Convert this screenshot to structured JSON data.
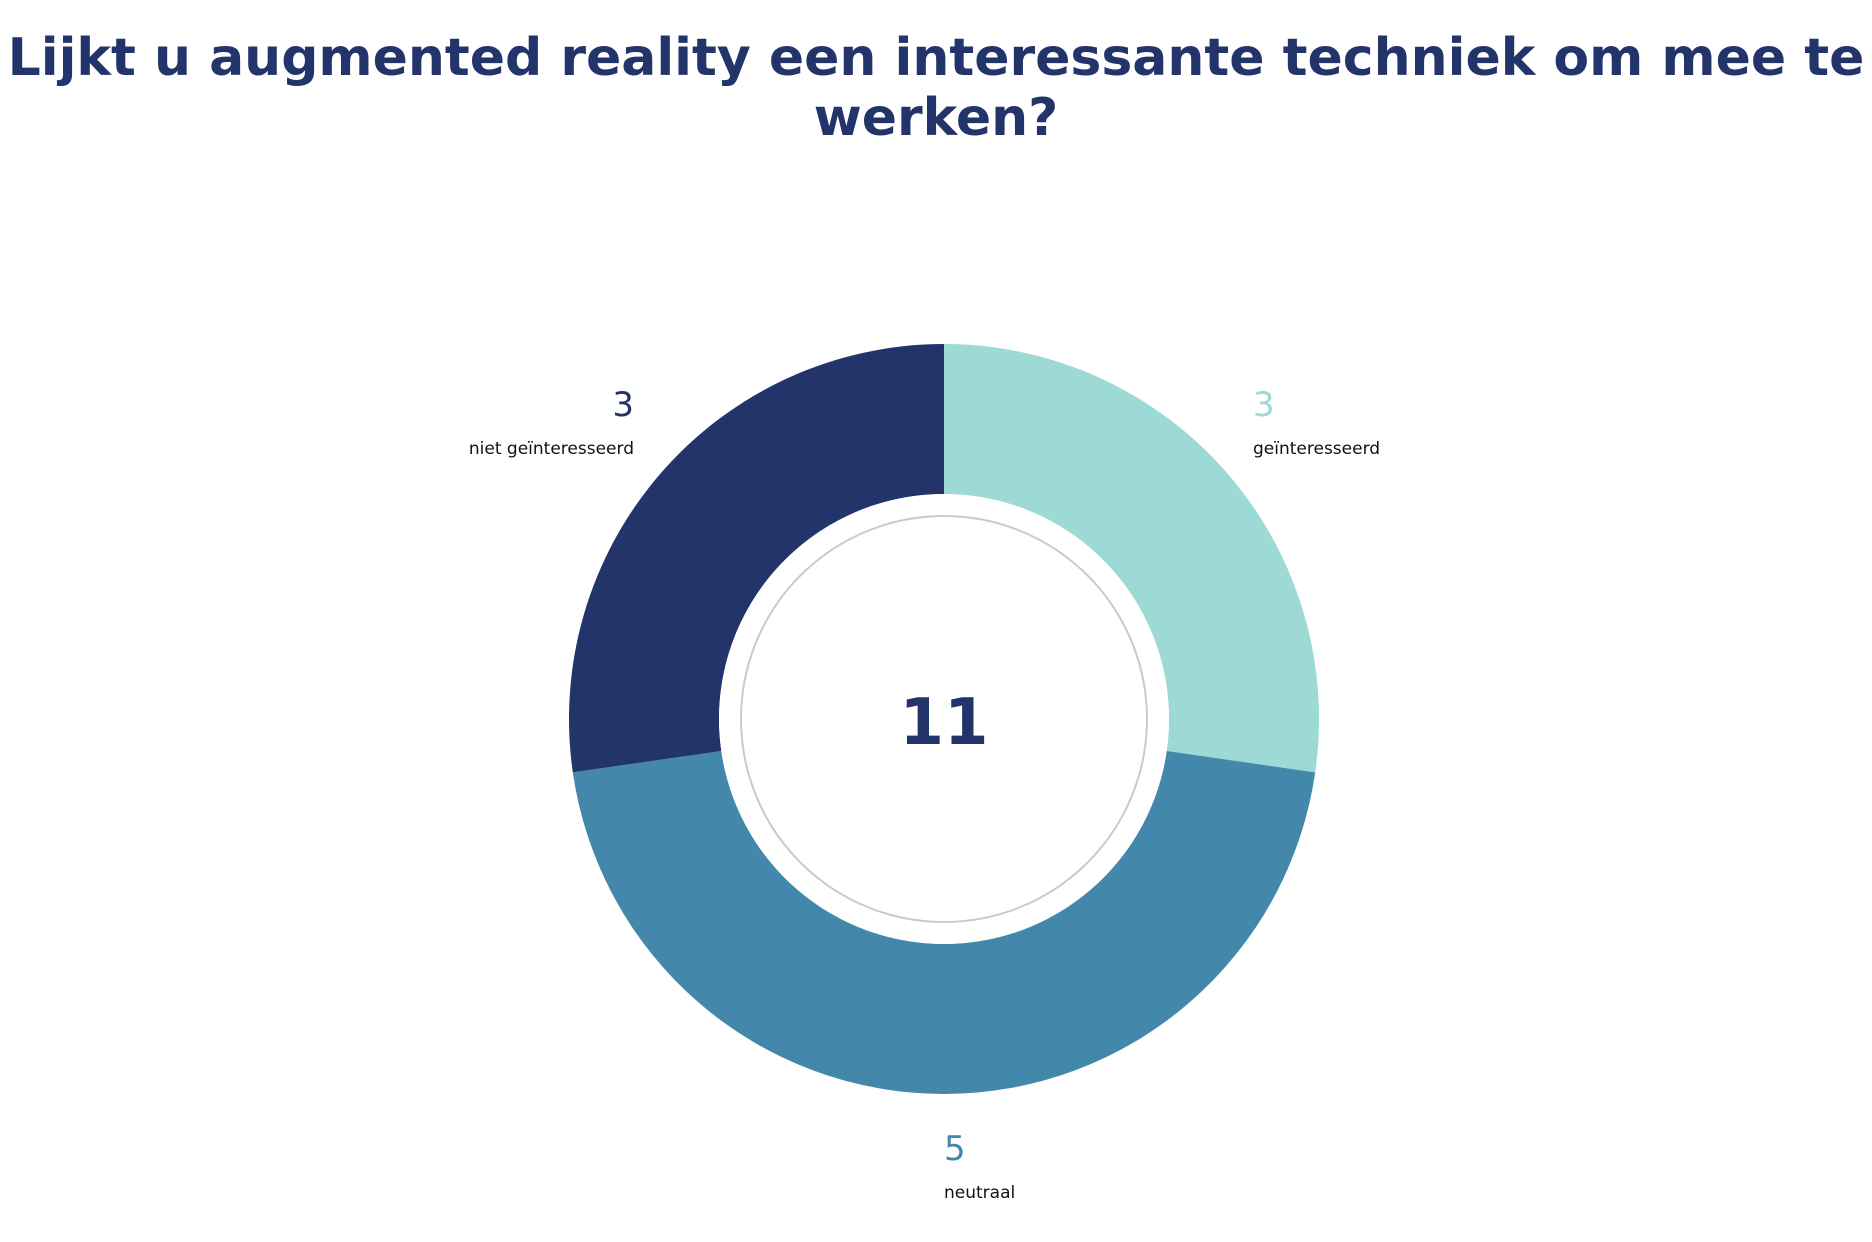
{
  "chart_data": {
    "type": "pie",
    "subtype": "donut",
    "title": "Lijkt u augmented reality een interessante techniek om mee te werken?",
    "total": "11",
    "slices": [
      {
        "label": "geïnteresseerd",
        "value": 3,
        "color": "#9ddad5"
      },
      {
        "label": "neutraal",
        "value": 5,
        "color": "#4387aa"
      },
      {
        "label": "niet geïnteresseerd",
        "value": 3,
        "color": "#22346a"
      }
    ],
    "legend": "none"
  },
  "colors": {
    "title": "#22346a",
    "total": "#22346a",
    "center_ring": "#c9c9d6",
    "background": "#ffffff"
  }
}
